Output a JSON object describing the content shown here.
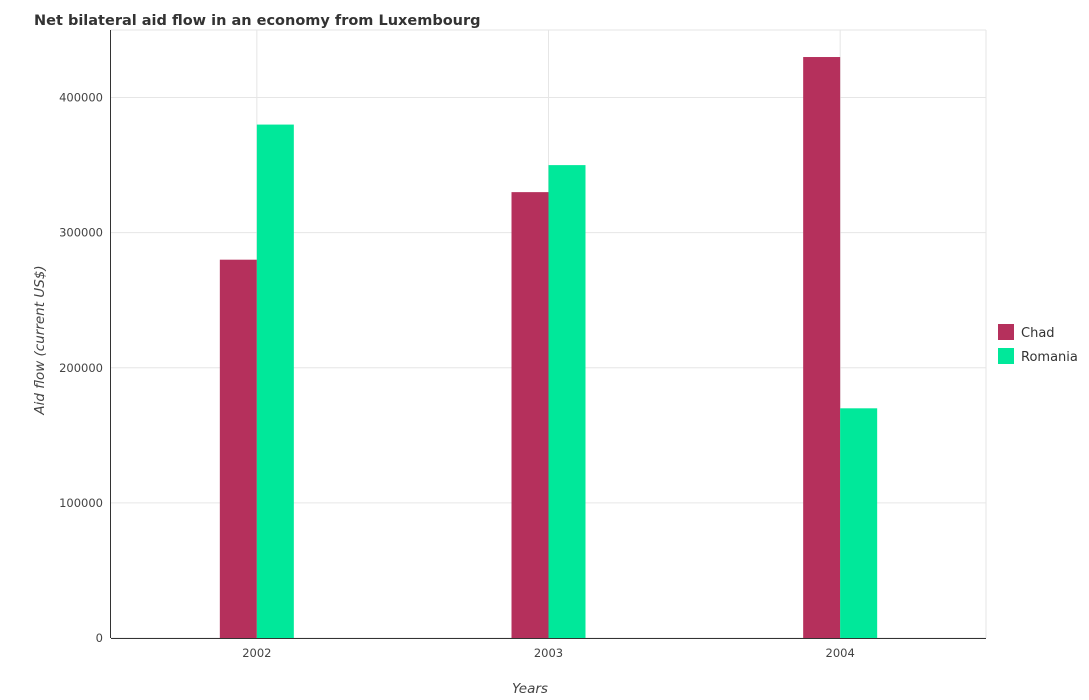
{
  "title": "Net bilateral aid flow in an economy from Luxembourg",
  "chart_data": {
    "type": "bar",
    "categories": [
      "2002",
      "2003",
      "2004"
    ],
    "series": [
      {
        "name": "Chad",
        "color": "#b5305c",
        "values": [
          280000,
          330000,
          430000
        ]
      },
      {
        "name": "Romania",
        "color": "#00e89a",
        "values": [
          380000,
          350000,
          170000
        ]
      }
    ],
    "xlabel": "Years",
    "ylabel": "Aid flow (current US$)",
    "ylim": [
      0,
      450000
    ],
    "yticks": [
      0,
      100000,
      200000,
      300000,
      400000
    ],
    "ytick_labels": [
      "0",
      "100000",
      "200000",
      "300000",
      "400000"
    ],
    "grid": true,
    "legend_position": "right"
  }
}
